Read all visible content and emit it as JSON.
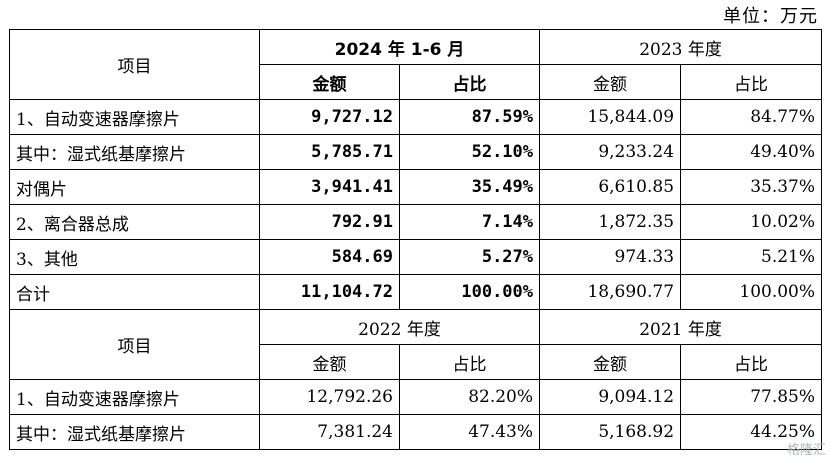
{
  "unit": "单位：万元",
  "watermark": "格隆汇",
  "table": {
    "item_header": "项目",
    "top": {
      "period1": "2024 年 1-6 月",
      "period2": "2023 年度",
      "sub": [
        "金额",
        "占比",
        "金额",
        "占比"
      ],
      "rows": [
        {
          "item": "1、自动变速器摩擦片",
          "v": [
            "9,727.12",
            "87.59%",
            "15,844.09",
            "84.77%"
          ]
        },
        {
          "item": "其中：湿式纸基摩擦片",
          "v": [
            "5,785.71",
            "52.10%",
            "9,233.24",
            "49.40%"
          ]
        },
        {
          "item": "对偶片",
          "v": [
            "3,941.41",
            "35.49%",
            "6,610.85",
            "35.37%"
          ]
        },
        {
          "item": "2、离合器总成",
          "v": [
            "792.91",
            "7.14%",
            "1,872.35",
            "10.02%"
          ]
        },
        {
          "item": "3、其他",
          "v": [
            "584.69",
            "5.27%",
            "974.33",
            "5.21%"
          ]
        },
        {
          "item": "合计",
          "v": [
            "11,104.72",
            "100.00%",
            "18,690.77",
            "100.00%"
          ]
        }
      ]
    },
    "bottom": {
      "period1": "2022 年度",
      "period2": "2021 年度",
      "sub": [
        "金额",
        "占比",
        "金额",
        "占比"
      ],
      "rows": [
        {
          "item": "1、自动变速器摩擦片",
          "v": [
            "12,792.26",
            "82.20%",
            "9,094.12",
            "77.85%"
          ]
        },
        {
          "item": "其中：湿式纸基摩擦片",
          "v": [
            "7,381.24",
            "47.43%",
            "5,168.92",
            "44.25%"
          ]
        }
      ]
    }
  }
}
